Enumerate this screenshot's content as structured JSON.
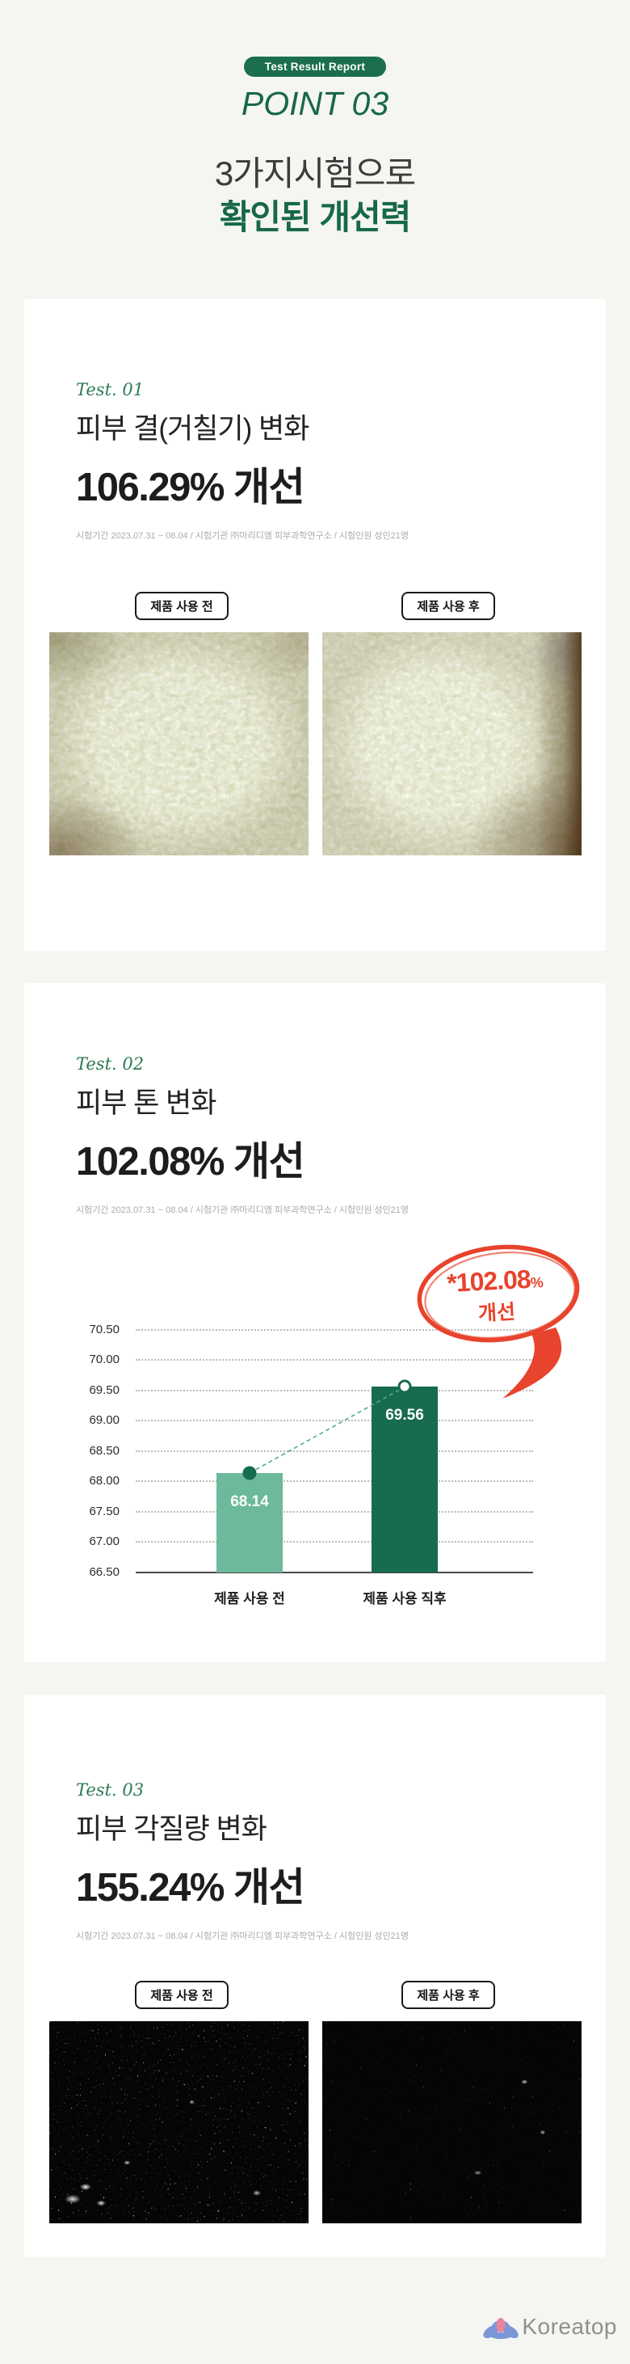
{
  "header": {
    "badge": "Test Result Report",
    "point": "POINT 03",
    "heading_line1": "3가지시험으로",
    "heading_line2": "확인된 개선력"
  },
  "tests": [
    {
      "label": "Test. 01",
      "title": "피부 결(거칠기) 변화",
      "result": "106.29% 개선",
      "caption": "시험기간 2023.07.31 ~ 08.04 / 시험기관 ㈜마리디엠 피부과학연구소 / 시험인원 성인21명",
      "before_label": "제품 사용 전",
      "after_label": "제품 사용 후"
    },
    {
      "label": "Test. 02",
      "title": "피부 톤 변화",
      "result": "102.08% 개선",
      "caption": "시험기간 2023.07.31 ~ 08.04 / 시험기관 ㈜마리디엠 피부과학연구소 / 시험인원 성인21명"
    },
    {
      "label": "Test. 03",
      "title": "피부 각질량 변화",
      "result": "155.24% 개선",
      "caption": "시험기간 2023.07.31 ~ 08.04 / 시험기관 ㈜마리디엠 피부과학연구소 / 시험인원 성인21명",
      "before_label": "제품 사용 전",
      "after_label": "제품 사용 후"
    }
  ],
  "chart_data": {
    "type": "bar",
    "categories": [
      "제품 사용 전",
      "제품 사용 직후"
    ],
    "values": [
      68.14,
      69.56
    ],
    "value_labels": [
      "68.14",
      "69.56"
    ],
    "ylim": [
      66.5,
      70.5
    ],
    "yticks": [
      70.5,
      70.0,
      69.5,
      69.0,
      68.5,
      68.0,
      67.5,
      67.0,
      66.5
    ],
    "grid": "dotted-horizontal",
    "legend": "none",
    "bar_colors": [
      "#6db99c",
      "#176b50"
    ],
    "connector_color": "#56a98c",
    "annotation": {
      "line1": "*102.08",
      "percent": "%",
      "line2": "개선",
      "color": "#e8432c"
    }
  },
  "footer": {
    "logo_text": "Koreatop"
  },
  "colors": {
    "green": "#1b6e4e",
    "dark_text": "#2e2e2e",
    "caption_gray": "#ababab",
    "red": "#e8432c",
    "bar_light": "#6db99c",
    "bar_dark": "#176b50"
  }
}
